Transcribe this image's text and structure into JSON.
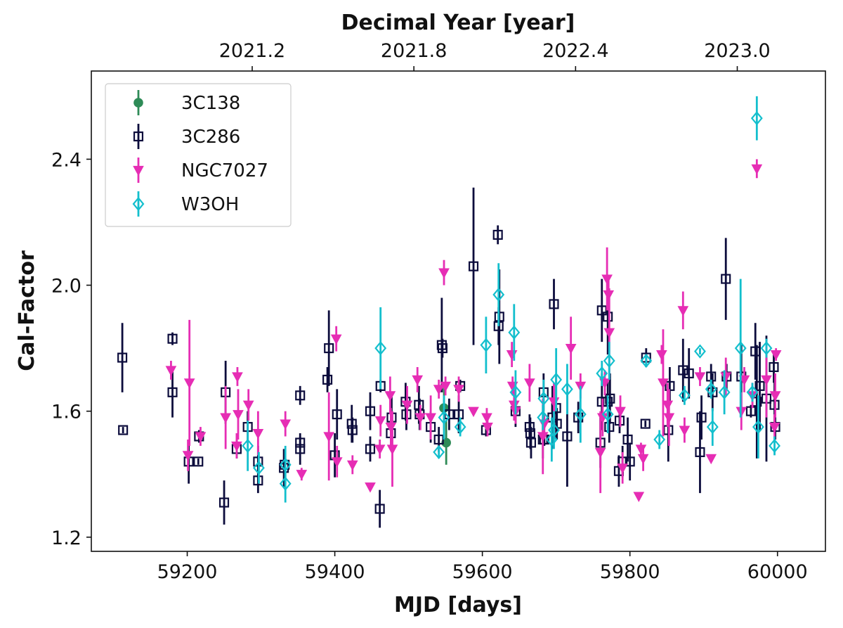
{
  "chart_data": {
    "type": "scatter",
    "title": "",
    "xlabel": "MJD [days]",
    "ylabel": "Cal-Factor",
    "top_xlabel": "Decimal Year [year]",
    "xlim": [
      59070,
      60065
    ],
    "ylim": [
      1.155,
      2.68
    ],
    "x_ticks": [
      59200,
      59400,
      59600,
      59800,
      60000
    ],
    "y_ticks": [
      1.2,
      1.6,
      2.0,
      2.4
    ],
    "top_ticks": [
      2021.2,
      2021.8,
      2022.4,
      2023.0
    ],
    "top_tick_labels": [
      "2021.2",
      "2021.8",
      "2022.4",
      "2023.0"
    ],
    "legend_position": "top-left",
    "grid": false,
    "series": [
      {
        "name": "3C138",
        "marker": "filled-circle",
        "color": "#2e8b57",
        "points": [
          [
            59548,
            1.61,
            0.07
          ],
          [
            59551,
            1.5,
            0.07
          ]
        ]
      },
      {
        "name": "3C286",
        "marker": "open-square",
        "color": "#0c0c3c",
        "points": [
          [
            59112,
            1.77,
            0.11
          ],
          [
            59113,
            1.54,
            0.01
          ],
          [
            59180,
            1.83,
            0.02
          ],
          [
            59180,
            1.66,
            0.08
          ],
          [
            59202,
            1.44,
            0.07
          ],
          [
            59215,
            1.44,
            0.01
          ],
          [
            59216,
            1.52,
            0.02
          ],
          [
            59250,
            1.31,
            0.07
          ],
          [
            59252,
            1.66,
            0.1
          ],
          [
            59267,
            1.48,
            0.03
          ],
          [
            59282,
            1.55,
            0.05
          ],
          [
            59296,
            1.38,
            0.04
          ],
          [
            59296,
            1.44,
            0.05
          ],
          [
            59331,
            1.42,
            0.06
          ],
          [
            59332,
            1.43,
            0.05
          ],
          [
            59353,
            1.65,
            0.03
          ],
          [
            59353,
            1.5,
            0.02
          ],
          [
            59353,
            1.48,
            0.05
          ],
          [
            59390,
            1.7,
            0.04
          ],
          [
            59392,
            1.8,
            0.12
          ],
          [
            59400,
            1.46,
            0.07
          ],
          [
            59403,
            1.59,
            0.08
          ],
          [
            59423,
            1.56,
            0.06
          ],
          [
            59424,
            1.54,
            0.04
          ],
          [
            59448,
            1.48,
            0.04
          ],
          [
            59448,
            1.6,
            0.06
          ],
          [
            59461,
            1.29,
            0.06
          ],
          [
            59462,
            1.68,
            0.02
          ],
          [
            59476,
            1.53,
            0.05
          ],
          [
            59477,
            1.58,
            0.07
          ],
          [
            59496,
            1.63,
            0.06
          ],
          [
            59497,
            1.59,
            0.05
          ],
          [
            59514,
            1.62,
            0.06
          ],
          [
            59515,
            1.59,
            0.05
          ],
          [
            59530,
            1.55,
            0.05
          ],
          [
            59541,
            1.51,
            0.04
          ],
          [
            59545,
            1.81,
            0.15
          ],
          [
            59546,
            1.8,
            0.03
          ],
          [
            59555,
            1.59,
            0.05
          ],
          [
            59568,
            1.59,
            0.06
          ],
          [
            59570,
            1.68,
            0.02
          ],
          [
            59588,
            2.06,
            0.25
          ],
          [
            59605,
            1.54,
            0.02
          ],
          [
            59621,
            2.16,
            0.03
          ],
          [
            59622,
            1.87,
            0.06
          ],
          [
            59623,
            1.9,
            0.15
          ],
          [
            59645,
            1.6,
            0.05
          ],
          [
            59664,
            1.55,
            0.04
          ],
          [
            59665,
            1.53,
            0.05
          ],
          [
            59666,
            1.5,
            0.05
          ],
          [
            59682,
            1.51,
            0.06
          ],
          [
            59683,
            1.66,
            0.06
          ],
          [
            59684,
            1.51,
            0.02
          ],
          [
            59695,
            1.58,
            0.1
          ],
          [
            59697,
            1.94,
            0.08
          ],
          [
            59700,
            1.61,
            0.1
          ],
          [
            59701,
            1.56,
            0.05
          ],
          [
            59715,
            1.52,
            0.16
          ],
          [
            59730,
            1.58,
            0.05
          ],
          [
            59760,
            1.5,
            0.08
          ],
          [
            59762,
            1.92,
            0.1
          ],
          [
            59762,
            1.63,
            0.09
          ],
          [
            59770,
            1.9,
            0.12
          ],
          [
            59770,
            1.63,
            0.07
          ],
          [
            59772,
            1.55,
            0.05
          ],
          [
            59773,
            1.64,
            0.08
          ],
          [
            59785,
            1.41,
            0.05
          ],
          [
            59786,
            1.57,
            0.04
          ],
          [
            59790,
            1.44,
            0.05
          ],
          [
            59797,
            1.51,
            0.07
          ],
          [
            59800,
            1.44,
            0.06
          ],
          [
            59821,
            1.56,
            0.01
          ],
          [
            59822,
            1.77,
            0.03
          ],
          [
            59852,
            1.54,
            0.1
          ],
          [
            59854,
            1.68,
            0.06
          ],
          [
            59872,
            1.73,
            0.1
          ],
          [
            59880,
            1.72,
            0.08
          ],
          [
            59895,
            1.47,
            0.13
          ],
          [
            59897,
            1.58,
            0.07
          ],
          [
            59910,
            1.71,
            0.04
          ],
          [
            59912,
            1.66,
            0.06
          ],
          [
            59930,
            2.02,
            0.13
          ],
          [
            59931,
            1.71,
            0.04
          ],
          [
            59951,
            1.71,
            0.1
          ],
          [
            59964,
            1.6,
            0.02
          ],
          [
            59970,
            1.79,
            0.09
          ],
          [
            59972,
            1.63,
            0.18
          ],
          [
            59976,
            1.68,
            0.14
          ],
          [
            59985,
            1.64,
            0.2
          ],
          [
            59995,
            1.74,
            0.05
          ],
          [
            59996,
            1.62,
            0.07
          ],
          [
            59997,
            1.55,
            0.04
          ]
        ]
      },
      {
        "name": "NGC7027",
        "marker": "filled-triangle-down",
        "color": "#e62db4",
        "points": [
          [
            59178,
            1.73,
            0.03
          ],
          [
            59201,
            1.46,
            0.05
          ],
          [
            59203,
            1.69,
            0.2
          ],
          [
            59218,
            1.52,
            0.03
          ],
          [
            59252,
            1.58,
            0.1
          ],
          [
            59267,
            1.49,
            0.04
          ],
          [
            59268,
            1.71,
            0.03
          ],
          [
            59269,
            1.59,
            0.08
          ],
          [
            59283,
            1.62,
            0.05
          ],
          [
            59296,
            1.53,
            0.07
          ],
          [
            59333,
            1.56,
            0.04
          ],
          [
            59355,
            1.4,
            0.02
          ],
          [
            59392,
            1.52,
            0.14
          ],
          [
            59402,
            1.83,
            0.04
          ],
          [
            59403,
            1.44,
            0.05
          ],
          [
            59424,
            1.43,
            0.03
          ],
          [
            59448,
            1.36,
            0.01
          ],
          [
            59461,
            1.48,
            0.03
          ],
          [
            59462,
            1.57,
            0.05
          ],
          [
            59475,
            1.65,
            0.06
          ],
          [
            59476,
            1.55,
            0.06
          ],
          [
            59478,
            1.48,
            0.12
          ],
          [
            59498,
            1.62,
            0.06
          ],
          [
            59512,
            1.7,
            0.04
          ],
          [
            59516,
            1.58,
            0.04
          ],
          [
            59530,
            1.58,
            0.07
          ],
          [
            59541,
            1.67,
            0.03
          ],
          [
            59548,
            2.04,
            0.04
          ],
          [
            59550,
            1.68,
            0.03
          ],
          [
            59568,
            1.67,
            0.04
          ],
          [
            59588,
            1.6,
            0.01
          ],
          [
            59606,
            1.58,
            0.03
          ],
          [
            59607,
            1.55,
            0.03
          ],
          [
            59640,
            1.78,
            0.04
          ],
          [
            59641,
            1.68,
            0.03
          ],
          [
            59643,
            1.62,
            0.05
          ],
          [
            59645,
            1.6,
            0.04
          ],
          [
            59664,
            1.69,
            0.06
          ],
          [
            59682,
            1.52,
            0.12
          ],
          [
            59684,
            1.56,
            0.03
          ],
          [
            59697,
            1.63,
            0.06
          ],
          [
            59720,
            1.8,
            0.1
          ],
          [
            59733,
            1.68,
            0.04
          ],
          [
            59760,
            1.47,
            0.13
          ],
          [
            59763,
            1.58,
            0.06
          ],
          [
            59766,
            1.69,
            0.04
          ],
          [
            59769,
            2.02,
            0.1
          ],
          [
            59771,
            1.97,
            0.05
          ],
          [
            59772,
            1.85,
            0.14
          ],
          [
            59787,
            1.6,
            0.05
          ],
          [
            59790,
            1.42,
            0.05
          ],
          [
            59812,
            1.33,
            0.01
          ],
          [
            59815,
            1.48,
            0.02
          ],
          [
            59818,
            1.45,
            0.04
          ],
          [
            59843,
            1.78,
            0.03
          ],
          [
            59845,
            1.69,
            0.17
          ],
          [
            59851,
            1.62,
            0.07
          ],
          [
            59853,
            1.58,
            0.09
          ],
          [
            59872,
            1.92,
            0.06
          ],
          [
            59874,
            1.54,
            0.04
          ],
          [
            59895,
            1.71,
            0.03
          ],
          [
            59910,
            1.45,
            0.01
          ],
          [
            59930,
            1.71,
            0.06
          ],
          [
            59951,
            1.6,
            0.06
          ],
          [
            59955,
            1.7,
            0.04
          ],
          [
            59966,
            1.65,
            0.04
          ],
          [
            59972,
            2.37,
            0.03
          ],
          [
            59985,
            1.7,
            0.12
          ],
          [
            59996,
            1.55,
            0.04
          ],
          [
            59997,
            1.65,
            0.07
          ],
          [
            59998,
            1.78,
            0.02
          ]
        ]
      },
      {
        "name": "W3OH",
        "marker": "open-diamond",
        "color": "#13bfcd",
        "points": [
          [
            59282,
            1.49,
            0.08
          ],
          [
            59297,
            1.42,
            0.05
          ],
          [
            59333,
            1.43,
            0.06
          ],
          [
            59333,
            1.37,
            0.06
          ],
          [
            59462,
            1.8,
            0.13
          ],
          [
            59541,
            1.47,
            0.02
          ],
          [
            59548,
            1.58,
            0.07
          ],
          [
            59570,
            1.55,
            0.03
          ],
          [
            59605,
            1.81,
            0.09
          ],
          [
            59622,
            1.97,
            0.1
          ],
          [
            59643,
            1.85,
            0.09
          ],
          [
            59645,
            1.66,
            0.07
          ],
          [
            59682,
            1.58,
            0.04
          ],
          [
            59683,
            1.64,
            0.06
          ],
          [
            59694,
            1.51,
            0.07
          ],
          [
            59697,
            1.54,
            0.06
          ],
          [
            59700,
            1.7,
            0.1
          ],
          [
            59715,
            1.67,
            0.08
          ],
          [
            59733,
            1.59,
            0.09
          ],
          [
            59762,
            1.72,
            0.04
          ],
          [
            59770,
            1.59,
            0.06
          ],
          [
            59772,
            1.76,
            0.06
          ],
          [
            59822,
            1.76,
            0.02
          ],
          [
            59840,
            1.51,
            0.03
          ],
          [
            59874,
            1.65,
            0.03
          ],
          [
            59895,
            1.79,
            0.01
          ],
          [
            59910,
            1.67,
            0.03
          ],
          [
            59912,
            1.55,
            0.06
          ],
          [
            59928,
            1.66,
            0.07
          ],
          [
            59950,
            1.8,
            0.22
          ],
          [
            59966,
            1.66,
            0.03
          ],
          [
            59972,
            2.53,
            0.07
          ],
          [
            59974,
            1.55,
            0.1
          ],
          [
            59985,
            1.8,
            0.03
          ],
          [
            59996,
            1.49,
            0.03
          ]
        ]
      }
    ]
  }
}
